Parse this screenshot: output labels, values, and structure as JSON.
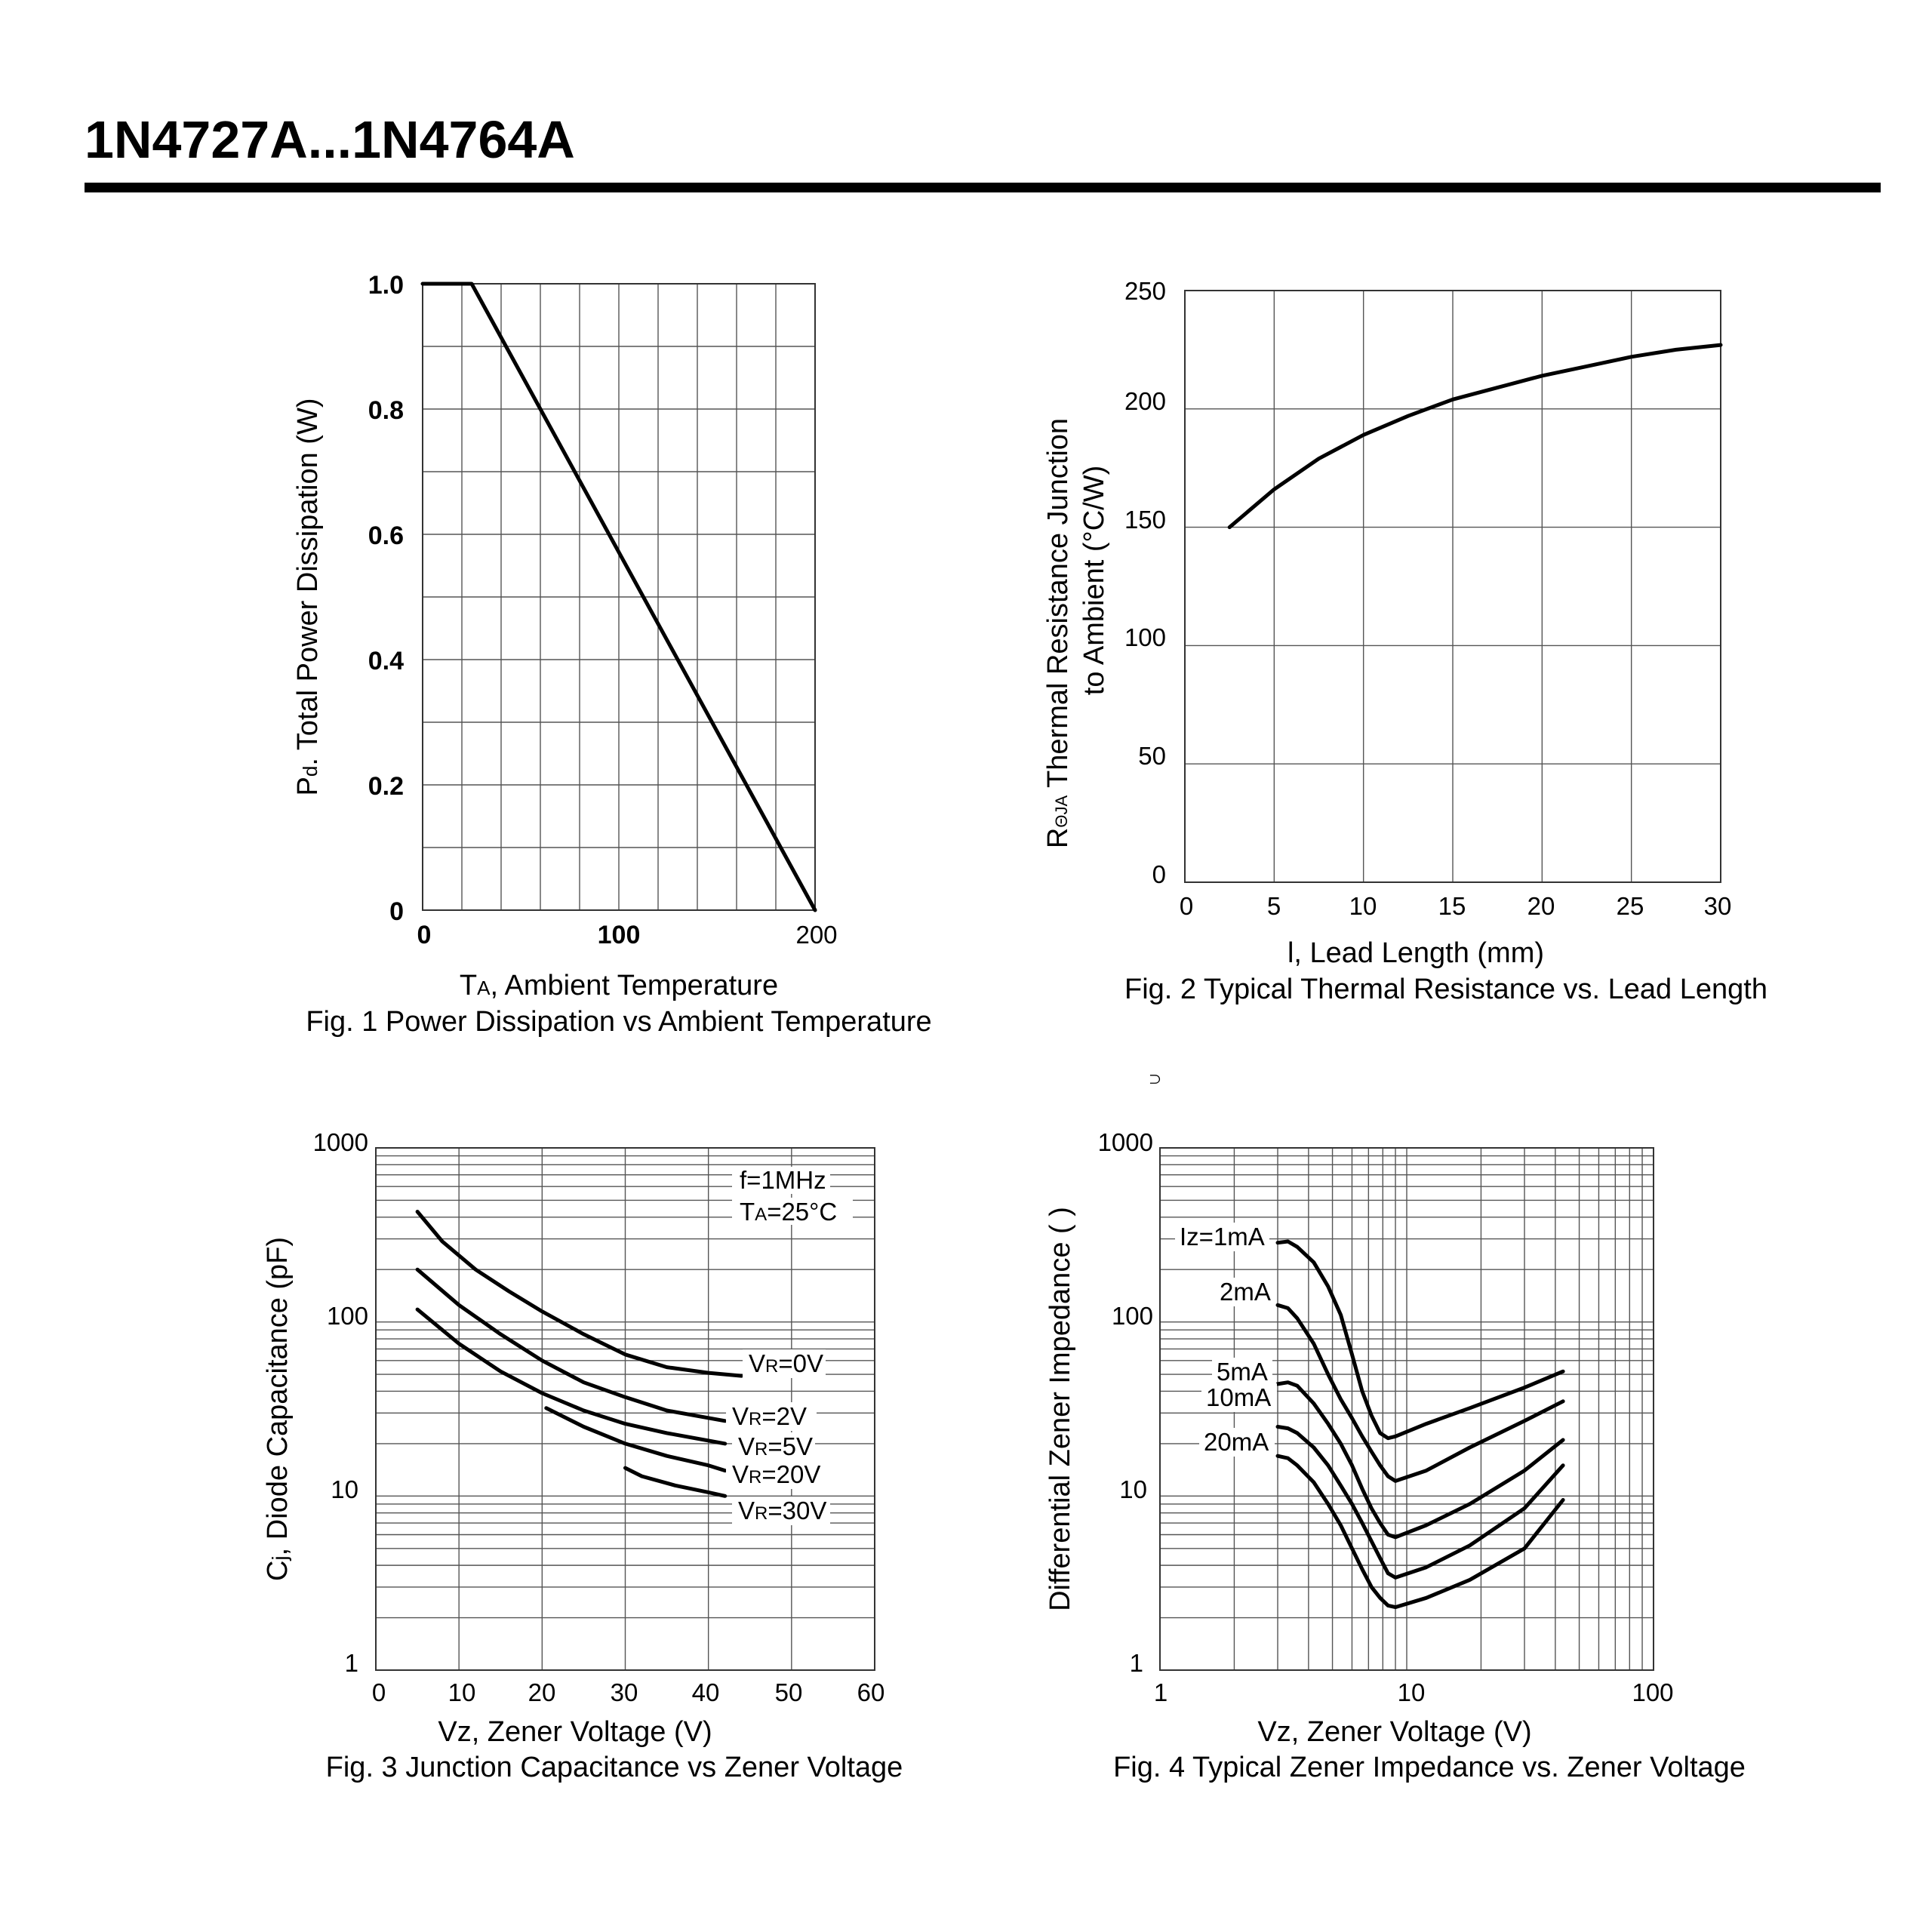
{
  "header": {
    "title": "1N4727A...1N4764A"
  },
  "stray_mark": "∩",
  "fig1": {
    "caption": "Fig. 1 Power Dissipation vs Ambient Temperature",
    "xlabel_sym": "T",
    "xlabel_sub": "A",
    "xlabel_rest": ", Ambient Temperature",
    "ylabel_sym": "P",
    "ylabel_sub": "d",
    "ylabel_rest": ". Total Power Dissipation (W)",
    "xticks": [
      "0",
      "100",
      "200"
    ],
    "yticks": [
      "0",
      "0.2",
      "0.4",
      "0.6",
      "0.8",
      "1.0"
    ]
  },
  "fig2": {
    "caption": "Fig. 2 Typical Thermal Resistance vs. Lead Length",
    "xlabel": "l, Lead Length (mm)",
    "ylabel_sym": "R",
    "ylabel_sub": "ΘJA",
    "ylabel_line1": " Thermal Resistance Junction",
    "ylabel_line2": "to Ambient (°C/W)",
    "xticks": [
      "0",
      "5",
      "10",
      "15",
      "20",
      "25",
      "30"
    ],
    "yticks": [
      "0",
      "50",
      "100",
      "150",
      "200",
      "250"
    ]
  },
  "fig3": {
    "caption": "Fig. 3 Junction Capacitance vs Zener Voltage",
    "xlabel": "Vz, Zener Voltage (V)",
    "ylabel_sym": "C",
    "ylabel_sub": "j",
    "ylabel_rest": ", Diode Capacitance (pF)",
    "xticks": [
      "0",
      "10",
      "20",
      "30",
      "40",
      "50",
      "60"
    ],
    "yticks": [
      "1",
      "10",
      "100",
      "1000"
    ],
    "note1": "f=1MHz",
    "note2_sym": "T",
    "note2_sub": "A",
    "note2_rest": "=25°C"
  },
  "fig4": {
    "caption": "Fig. 4 Typical Zener Impedance vs. Zener Voltage",
    "xlabel": "Vz, Zener Voltage (V)",
    "ylabel": "Differential Zener Impedance (  )",
    "xticks": [
      "1",
      "10",
      "100"
    ],
    "yticks": [
      "1",
      "10",
      "100",
      "1000"
    ]
  },
  "chart_data": [
    {
      "type": "line",
      "title": "Fig. 1 Power Dissipation vs Ambient Temperature",
      "xlabel": "TA, Ambient Temperature",
      "ylabel": "Pd. Total Power Dissipation (W)",
      "xlim": [
        0,
        200
      ],
      "ylim": [
        0,
        1.0
      ],
      "series": [
        {
          "name": "Pd",
          "x": [
            0,
            25,
            200
          ],
          "y": [
            1.0,
            1.0,
            0
          ]
        }
      ]
    },
    {
      "type": "line",
      "title": "Fig. 2 Typical Thermal Resistance vs. Lead Length",
      "xlabel": "l, Lead Length (mm)",
      "ylabel": "RΘJA Thermal Resistance Junction to Ambient (°C/W)",
      "xlim": [
        0,
        30
      ],
      "ylim": [
        0,
        250
      ],
      "series": [
        {
          "name": "RΘJA",
          "x": [
            2.5,
            5,
            7.5,
            10,
            12.5,
            15,
            17.5,
            20,
            22.5,
            25,
            27.5,
            30
          ],
          "y": [
            150,
            166,
            179,
            189,
            197,
            204,
            209,
            214,
            218,
            222,
            225,
            227
          ]
        }
      ]
    },
    {
      "type": "line",
      "title": "Fig. 3 Junction Capacitance vs Zener Voltage",
      "xlabel": "Vz, Zener Voltage (V)",
      "ylabel": "Cj, Diode Capacitance (pF)",
      "xlim": [
        0,
        60
      ],
      "ylim": [
        1,
        1000
      ],
      "yscale": "log",
      "notes": [
        "f=1MHz",
        "TA=25°C"
      ],
      "series": [
        {
          "name": "VR=0V",
          "x": [
            5,
            8,
            12,
            16,
            20,
            25,
            30,
            35,
            40,
            44
          ],
          "y": [
            430,
            290,
            200,
            150,
            115,
            85,
            65,
            55,
            51,
            49
          ]
        },
        {
          "name": "VR=2V",
          "x": [
            5,
            10,
            15,
            20,
            25,
            30,
            35,
            42
          ],
          "y": [
            200,
            125,
            85,
            60,
            45,
            37,
            31,
            27
          ]
        },
        {
          "name": "VR=5V",
          "x": [
            5,
            10,
            15,
            20,
            25,
            30,
            35,
            42
          ],
          "y": [
            118,
            75,
            52,
            39,
            31,
            26,
            23,
            20
          ]
        },
        {
          "name": "VR=20V",
          "x": [
            20.5,
            25,
            30,
            35,
            40,
            42
          ],
          "y": [
            32,
            25,
            20,
            17,
            15,
            14
          ]
        },
        {
          "name": "VR=30V",
          "x": [
            30,
            32,
            36,
            40,
            42
          ],
          "y": [
            14.5,
            13,
            11.5,
            10.5,
            10
          ]
        }
      ]
    },
    {
      "type": "line",
      "title": "Fig. 4 Typical Zener Impedance vs. Zener Voltage",
      "xlabel": "Vz, Zener Voltage (V)",
      "ylabel": "Differential Zener Impedance (  )",
      "xlim": [
        1,
        100
      ],
      "ylim": [
        1,
        1000
      ],
      "xscale": "log",
      "yscale": "log",
      "series": [
        {
          "name": "Iz=1mA",
          "x": [
            3.0,
            3.3,
            3.6,
            4.2,
            4.8,
            5.4,
            6.0,
            6.6,
            7.2,
            7.8,
            8.4,
            9.0,
            12,
            18,
            30,
            43
          ],
          "y": [
            285,
            290,
            270,
            220,
            160,
            110,
            65,
            40,
            29,
            23,
            21.5,
            22,
            26,
            32,
            42,
            52
          ]
        },
        {
          "name": "2mA",
          "x": [
            3.0,
            3.3,
            3.6,
            4.2,
            4.8,
            5.4,
            6.0,
            6.6,
            7.2,
            7.8,
            8.4,
            9.0,
            12,
            18,
            30,
            43
          ],
          "y": [
            125,
            120,
            105,
            75,
            50,
            36,
            28,
            22,
            18,
            15,
            13,
            12.2,
            14,
            19,
            27,
            35
          ]
        },
        {
          "name": "5mA",
          "x": [
            3.0,
            3.3,
            3.6,
            4.2,
            4.8,
            5.4,
            6.0,
            6.6,
            7.2,
            7.8,
            8.4,
            9.0,
            12,
            18,
            30,
            43
          ],
          "y": [
            44,
            45,
            43,
            34,
            26,
            20,
            15,
            11,
            8.5,
            7,
            6,
            5.8,
            6.8,
            9,
            14,
            21
          ]
        },
        {
          "name": "10mA",
          "x": [
            3.0,
            3.3,
            3.6,
            4.2,
            4.8,
            5.4,
            6.0,
            6.6,
            7.2,
            7.8,
            8.4,
            9.0,
            12,
            18,
            30,
            43
          ],
          "y": [
            25,
            24.5,
            23,
            19,
            15,
            11.5,
            9,
            7,
            5.5,
            4.4,
            3.6,
            3.4,
            3.9,
            5.2,
            8.5,
            15
          ]
        },
        {
          "name": "20mA",
          "x": [
            3.0,
            3.3,
            3.6,
            4.2,
            4.8,
            5.4,
            6.0,
            6.6,
            7.2,
            7.8,
            8.4,
            9.0,
            12,
            18,
            30,
            43
          ],
          "y": [
            17,
            16.5,
            15,
            12,
            9,
            6.8,
            5,
            3.8,
            3.0,
            2.6,
            2.35,
            2.3,
            2.6,
            3.3,
            5,
            9.5
          ]
        }
      ]
    }
  ]
}
